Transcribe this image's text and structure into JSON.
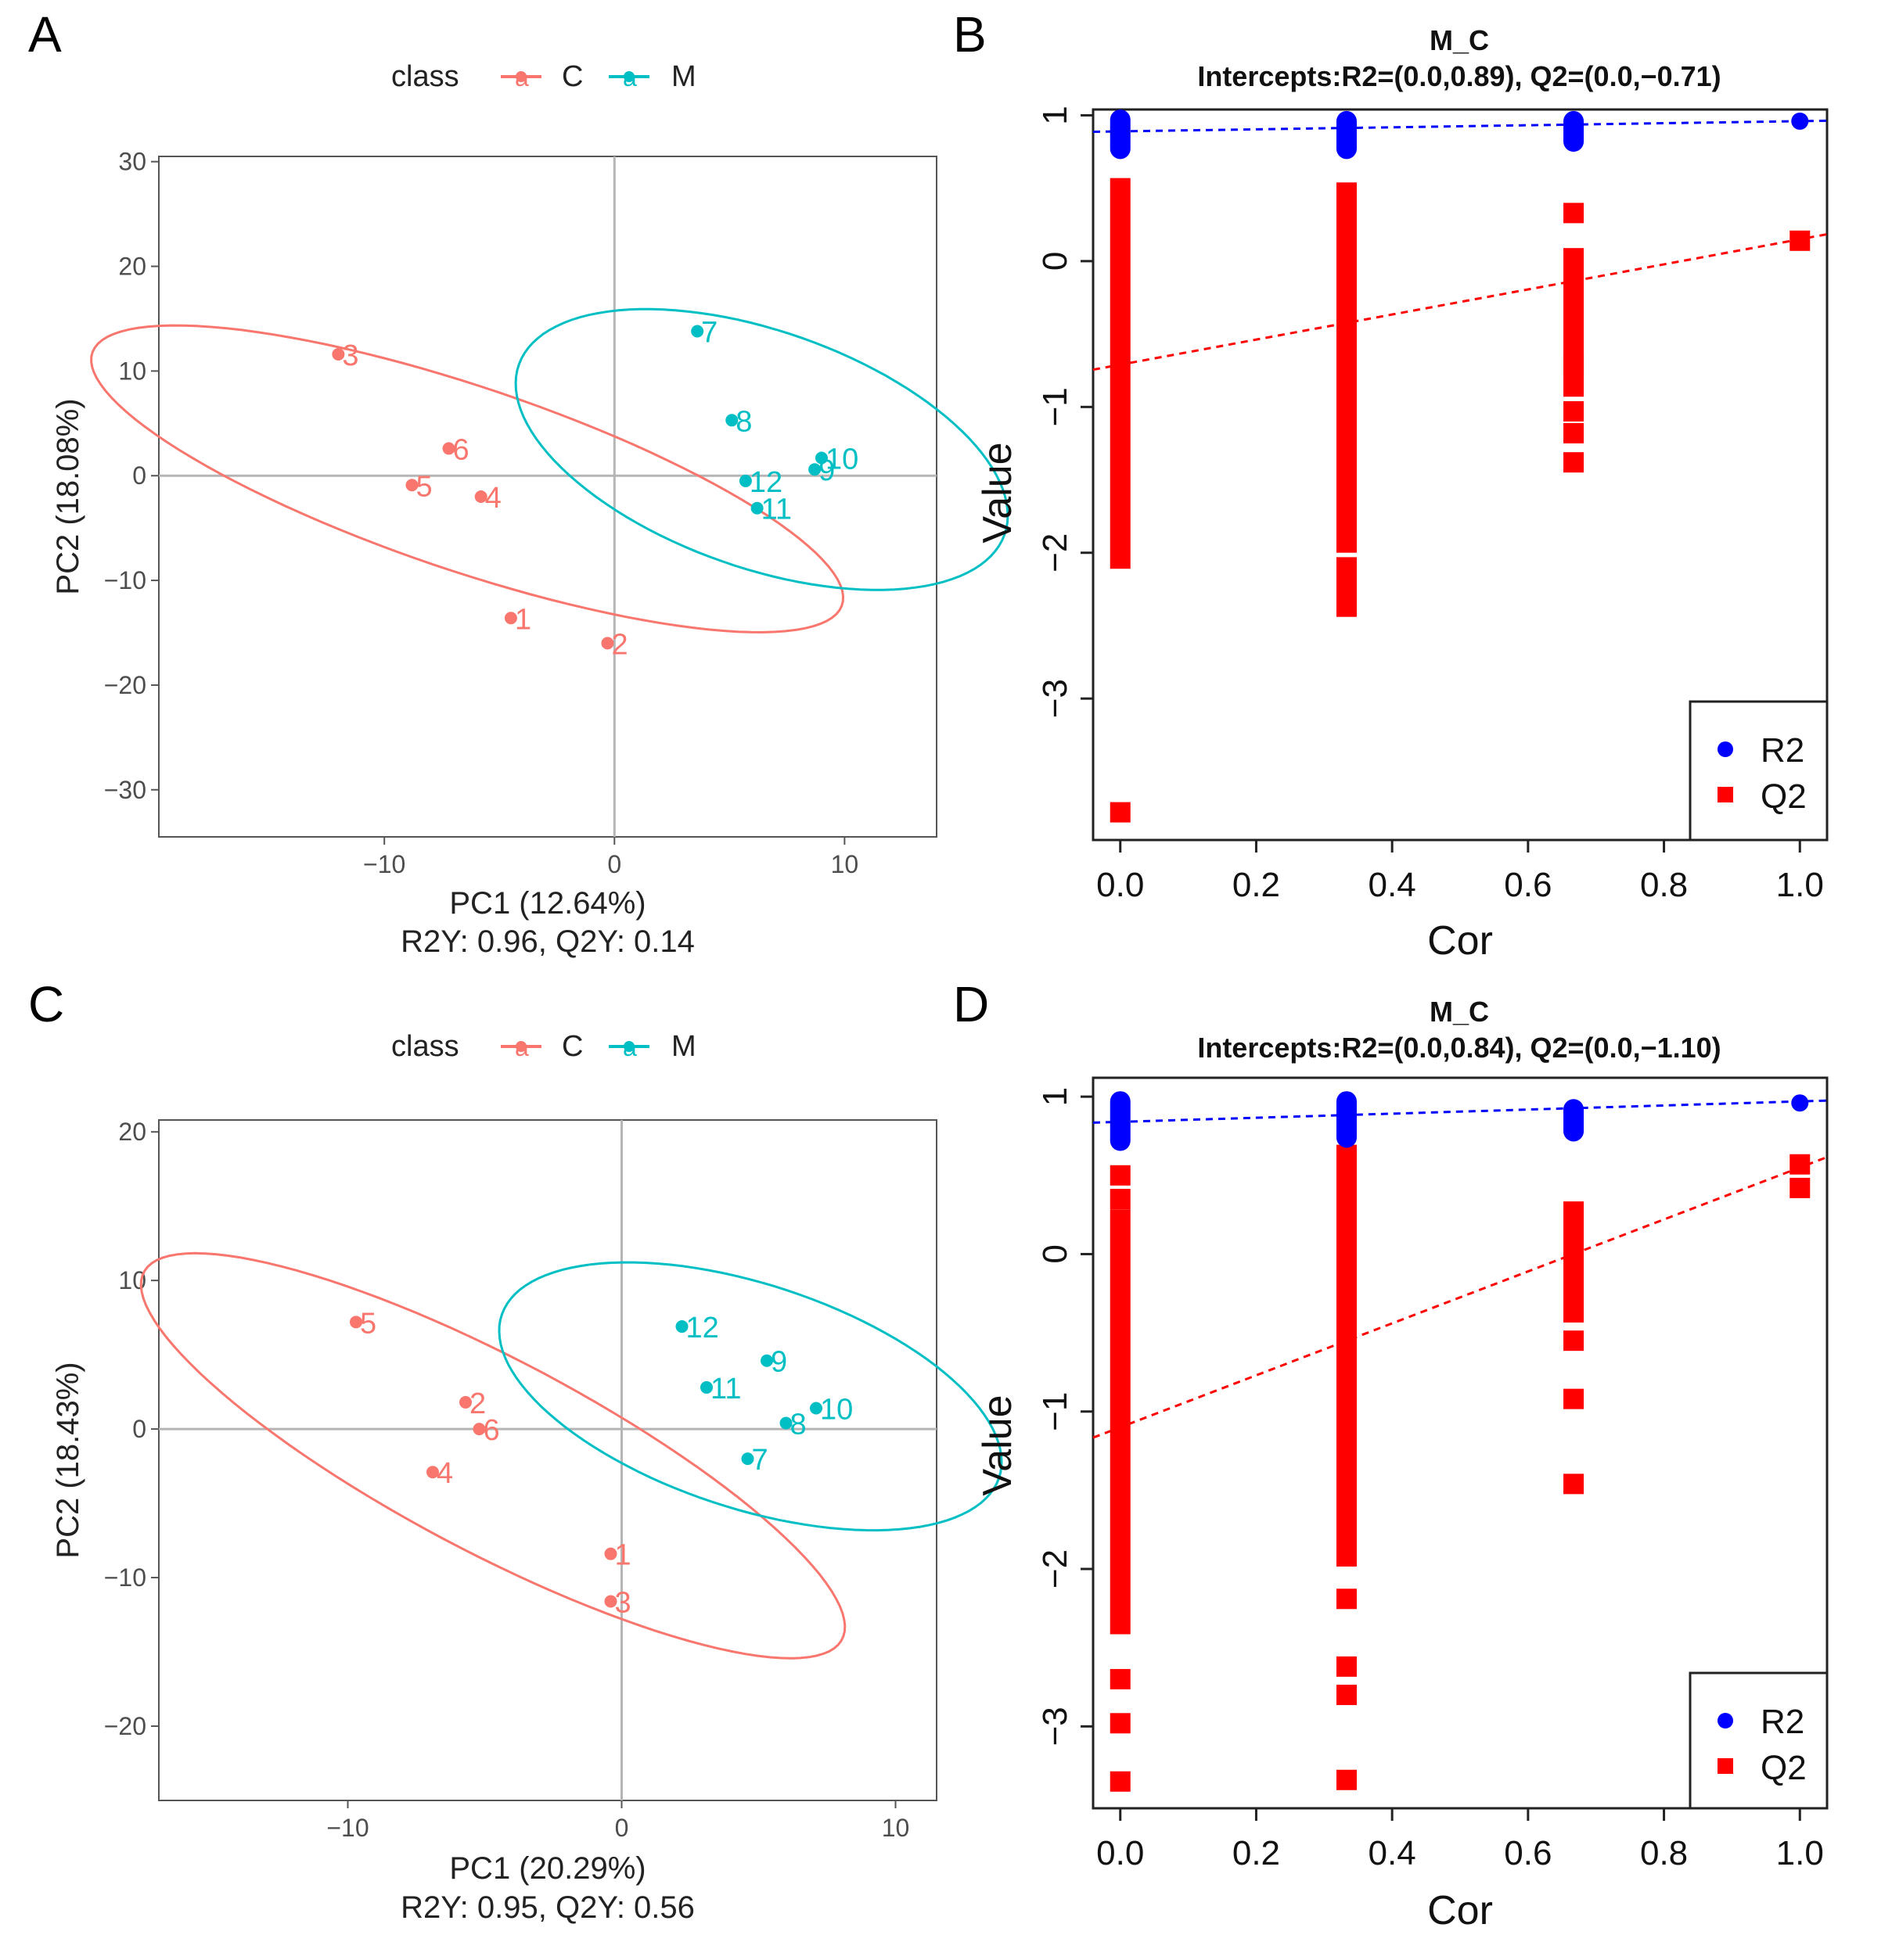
{
  "colors": {
    "C": "#f8766d",
    "M": "#00bfc4",
    "R2": "#0000ff",
    "Q2": "#ff0000"
  },
  "chart_data": [
    {
      "panel": "A",
      "type": "scatter",
      "legend_title": "class",
      "legend_key_glyph": "a",
      "legend_position": "top",
      "xlabel": "PC1 (12.64%)",
      "ylabel": "PC2 (18.08%)",
      "subtitle": "R2Y: 0.96, Q2Y: 0.14",
      "xlim": [
        -19.8,
        14
      ],
      "ylim": [
        -34.5,
        30.5
      ],
      "xticks": [
        -10,
        0,
        10
      ],
      "xtick_labels": [
        "−10",
        "0",
        "10"
      ],
      "yticks": [
        -30,
        -20,
        -10,
        0,
        10,
        20,
        30
      ],
      "ytick_labels": [
        "−30",
        "−20",
        "−10",
        "0",
        "10",
        "20",
        "30"
      ],
      "series": [
        {
          "name": "C",
          "points": [
            {
              "label": "1",
              "x": -4.5,
              "y": -13.6
            },
            {
              "label": "2",
              "x": -0.3,
              "y": -16.0
            },
            {
              "label": "3",
              "x": -12.0,
              "y": 11.6
            },
            {
              "label": "4",
              "x": -5.8,
              "y": -2.0
            },
            {
              "label": "5",
              "x": -8.8,
              "y": -0.9
            },
            {
              "label": "6",
              "x": -7.2,
              "y": 2.6
            }
          ],
          "ellipse": {
            "cx": -6.4,
            "cy": -0.3,
            "rx": 20.7,
            "ry": 7.3,
            "angle_deg": -41
          }
        },
        {
          "name": "M",
          "points": [
            {
              "label": "7",
              "x": 3.6,
              "y": 13.8
            },
            {
              "label": "8",
              "x": 5.1,
              "y": 5.3
            },
            {
              "label": "9",
              "x": 8.7,
              "y": 0.6
            },
            {
              "label": "10",
              "x": 9.0,
              "y": 1.7
            },
            {
              "label": "11",
              "x": 6.2,
              "y": -3.1
            },
            {
              "label": "12",
              "x": 5.7,
              "y": -0.5
            }
          ],
          "ellipse": {
            "cx": 6.4,
            "cy": 2.5,
            "rx": 14.9,
            "ry": 8.5,
            "angle_deg": -58
          }
        }
      ]
    },
    {
      "panel": "B",
      "type": "scatter",
      "title": "M_C",
      "subtitle": "Intercepts:R2=(0.0,0.89), Q2=(0.0,−0.71)",
      "xlabel": "Cor",
      "ylabel": "Value",
      "xlim": [
        -0.04,
        1.04
      ],
      "ylim": [
        -3.97,
        1.04
      ],
      "xticks": [
        0,
        0.2,
        0.4,
        0.6,
        0.8,
        1.0
      ],
      "xtick_labels": [
        "0.0",
        "0.2",
        "0.4",
        "0.6",
        "0.8",
        "1.0"
      ],
      "yticks": [
        -3,
        -2,
        -1,
        0,
        1
      ],
      "ytick_labels": [
        "−3",
        "−2",
        "−1",
        "0",
        "1"
      ],
      "legend": [
        "R2",
        "Q2"
      ],
      "legend_position": "bottom-right",
      "R2": {
        "bars": [
          {
            "x": 0,
            "ymin": 0.77,
            "ymax": 0.97
          },
          {
            "x": 0.333,
            "ymin": 0.77,
            "ymax": 0.96
          },
          {
            "x": 0.667,
            "ymin": 0.82,
            "ymax": 0.96
          }
        ],
        "points": [
          {
            "x": 1.0,
            "y": 0.96
          }
        ],
        "line": {
          "intercept": 0.89,
          "slope": 0.07
        }
      },
      "Q2": {
        "bars": [
          {
            "x": 0,
            "ymin": -2.04,
            "ymax": 0.5
          },
          {
            "x": 0.333,
            "ymin": -1.93,
            "ymax": 0.47
          },
          {
            "x": 0.333,
            "ymin": -2.37,
            "ymax": -2.1
          },
          {
            "x": 0.667,
            "ymin": -0.86,
            "ymax": 0.02
          }
        ],
        "points": [
          {
            "x": 0,
            "y": -3.78
          },
          {
            "x": 0.667,
            "y": 0.33
          },
          {
            "x": 0.667,
            "y": -0.71
          },
          {
            "x": 0.667,
            "y": -1.03
          },
          {
            "x": 0.667,
            "y": -1.18
          },
          {
            "x": 0.667,
            "y": -1.38
          },
          {
            "x": 1.0,
            "y": 0.14
          }
        ],
        "line": {
          "intercept": -0.71,
          "slope": 0.86
        }
      }
    },
    {
      "panel": "C",
      "type": "scatter",
      "legend_title": "class",
      "legend_key_glyph": "a",
      "legend_position": "top",
      "xlabel": "PC1 (20.29%)",
      "ylabel": "PC2 (18.43%)",
      "subtitle": "R2Y: 0.95, Q2Y: 0.56",
      "xlim": [
        -16.9,
        11.5
      ],
      "ylim": [
        -25,
        20.8
      ],
      "xticks": [
        -10,
        0,
        10
      ],
      "xtick_labels": [
        "−10",
        "0",
        "10"
      ],
      "yticks": [
        -20,
        -10,
        0,
        10,
        20
      ],
      "ytick_labels": [
        "−20",
        "−10",
        "0",
        "10",
        "20"
      ],
      "series": [
        {
          "name": "C",
          "points": [
            {
              "label": "1",
              "x": -0.4,
              "y": -8.4
            },
            {
              "label": "2",
              "x": -5.7,
              "y": 1.8
            },
            {
              "label": "3",
              "x": -0.4,
              "y": -11.6
            },
            {
              "label": "4",
              "x": -6.9,
              "y": -2.9
            },
            {
              "label": "5",
              "x": -9.7,
              "y": 7.2
            },
            {
              "label": "6",
              "x": -5.2,
              "y": 0.0
            }
          ],
          "ellipse": {
            "cx": -4.7,
            "cy": -1.8,
            "rx": 18.0,
            "ry": 5.2,
            "angle_deg": -47
          }
        },
        {
          "name": "M",
          "points": [
            {
              "label": "7",
              "x": 4.6,
              "y": -2.0
            },
            {
              "label": "8",
              "x": 6.0,
              "y": 0.4
            },
            {
              "label": "9",
              "x": 5.3,
              "y": 4.6
            },
            {
              "label": "10",
              "x": 7.1,
              "y": 1.4
            },
            {
              "label": "11",
              "x": 3.1,
              "y": 2.8
            },
            {
              "label": "12",
              "x": 2.2,
              "y": 6.9
            }
          ],
          "ellipse": {
            "cx": 4.7,
            "cy": 2.2,
            "rx": 11.1,
            "ry": 6.5,
            "angle_deg": -44
          }
        }
      ]
    },
    {
      "panel": "D",
      "type": "scatter",
      "title": "M_C",
      "subtitle": "Intercepts:R2=(0.0,0.84), Q2=(0.0,−1.10)",
      "xlabel": "Cor",
      "ylabel": "Value",
      "xlim": [
        -0.04,
        1.04
      ],
      "ylim": [
        -3.52,
        1.12
      ],
      "xticks": [
        0,
        0.2,
        0.4,
        0.6,
        0.8,
        1.0
      ],
      "xtick_labels": [
        "0.0",
        "0.2",
        "0.4",
        "0.6",
        "0.8",
        "1.0"
      ],
      "yticks": [
        -3,
        -2,
        -1,
        0,
        1
      ],
      "ytick_labels": [
        "−3",
        "−2",
        "−1",
        "0",
        "1"
      ],
      "legend": [
        "R2",
        "Q2"
      ],
      "legend_position": "bottom-right",
      "R2": {
        "bars": [
          {
            "x": 0,
            "ymin": 0.72,
            "ymax": 0.97
          },
          {
            "x": 0.333,
            "ymin": 0.74,
            "ymax": 0.97
          },
          {
            "x": 0.667,
            "ymin": 0.78,
            "ymax": 0.92
          }
        ],
        "points": [
          {
            "x": 1.0,
            "y": 0.96
          }
        ],
        "line": {
          "intercept": 0.84,
          "slope": 0.13
        }
      },
      "Q2": {
        "bars": [
          {
            "x": 0,
            "ymin": -2.35,
            "ymax": 0.22
          },
          {
            "x": 0.333,
            "ymin": -1.92,
            "ymax": 0.63
          },
          {
            "x": 0.667,
            "ymin": -0.37,
            "ymax": 0.27
          }
        ],
        "points": [
          {
            "x": 0,
            "y": 0.5
          },
          {
            "x": 0,
            "y": 0.35
          },
          {
            "x": 0,
            "y": -2.7
          },
          {
            "x": 0,
            "y": -2.98
          },
          {
            "x": 0,
            "y": -3.35
          },
          {
            "x": 0.333,
            "y": -2.19
          },
          {
            "x": 0.333,
            "y": -2.62
          },
          {
            "x": 0.333,
            "y": -2.8
          },
          {
            "x": 0.333,
            "y": -3.34
          },
          {
            "x": 0.667,
            "y": -0.55
          },
          {
            "x": 0.667,
            "y": -0.92
          },
          {
            "x": 0.667,
            "y": -1.46
          },
          {
            "x": 1.0,
            "y": 0.57
          },
          {
            "x": 1.0,
            "y": 0.42
          }
        ],
        "line": {
          "intercept": -1.1,
          "slope": 1.65
        }
      }
    }
  ]
}
